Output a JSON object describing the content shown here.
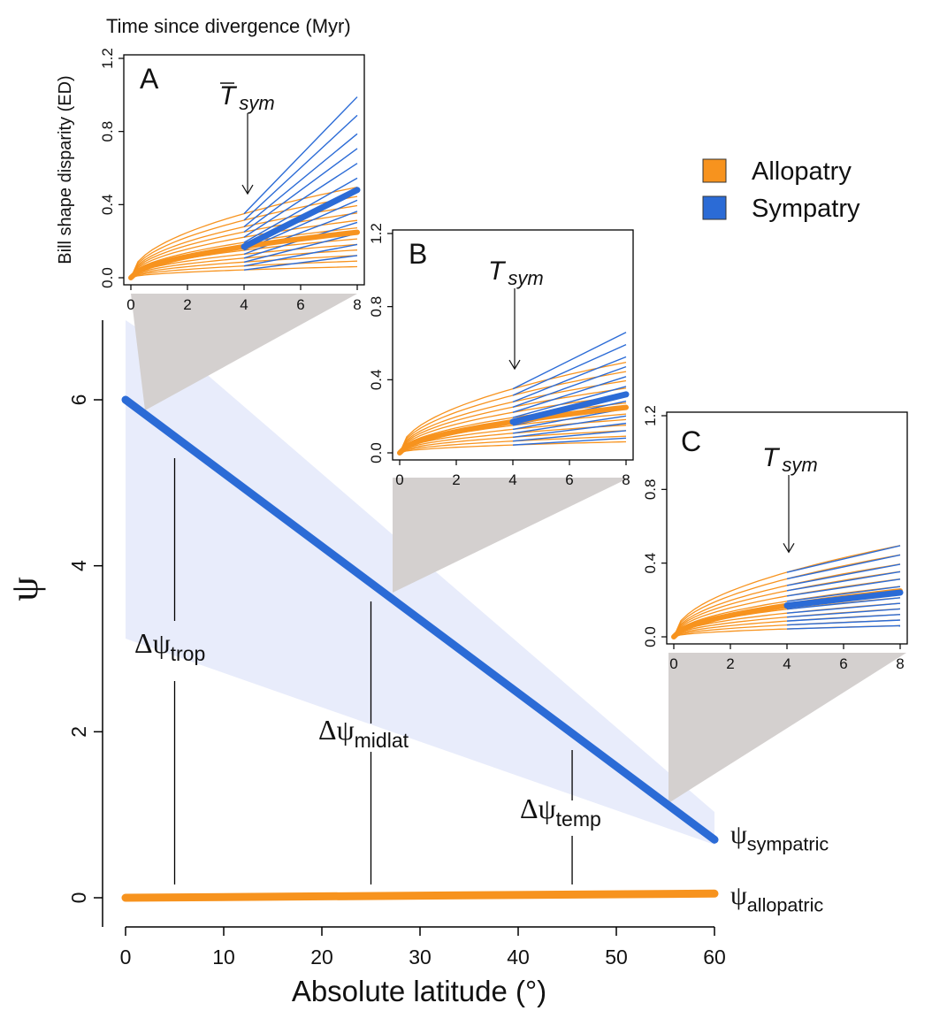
{
  "chart_data": [
    {
      "type": "line",
      "xlabel": "Absolute latitude (°)",
      "ylabel": "ψ",
      "xlim": [
        0,
        60
      ],
      "ylim": [
        0,
        6.8
      ],
      "xticks": [
        0,
        10,
        20,
        30,
        40,
        50,
        60
      ],
      "yticks": [
        0,
        2,
        4,
        6
      ],
      "series": [
        {
          "name": "ψsympatric",
          "label_base": "ψ",
          "label_sub": "sympatric",
          "color": "#2b6bd6",
          "x": [
            0,
            60
          ],
          "y": [
            6.0,
            0.7
          ]
        },
        {
          "name": "ψallopatric",
          "label_base": "ψ",
          "label_sub": "allopatric",
          "color": "#f7931e",
          "x": [
            0,
            60
          ],
          "y": [
            0.0,
            0.05
          ]
        }
      ],
      "annotations": [
        {
          "base": "Δψ",
          "sub": "trop",
          "x": 5
        },
        {
          "base": "Δψ",
          "sub": "midlat",
          "x": 25
        },
        {
          "base": "Δψ",
          "sub": "temp",
          "x": 45.5
        }
      ],
      "legend": {
        "position": "top-right",
        "items": [
          {
            "label": "Allopatry",
            "color": "#f7931e"
          },
          {
            "label": "Sympatry",
            "color": "#2b6bd6"
          }
        ]
      }
    },
    {
      "type": "line",
      "panel": "A",
      "title": "Time since divergence (Myr)",
      "ylabel": "Bill shape disparity (ED)",
      "xlim": [
        0,
        8
      ],
      "ylim": [
        0,
        1.2
      ],
      "xticks": [
        0,
        2,
        4,
        6,
        8
      ],
      "yticks": [
        "0.0",
        "0.4",
        "0.8",
        "1.2"
      ],
      "annotation": "T̄sym",
      "annotation_base": "T",
      "annotation_sub": "sym",
      "overline": true,
      "t_sym": 4,
      "mean_allopatric": {
        "x": [
          0,
          4,
          8
        ],
        "y": [
          0,
          0.17,
          0.23
        ]
      },
      "mean_sympatric": {
        "x": [
          4,
          8
        ],
        "y": [
          0.17,
          0.48
        ]
      }
    },
    {
      "type": "line",
      "panel": "B",
      "ylim": [
        0,
        1.2
      ],
      "xlim": [
        0,
        8
      ],
      "xticks": [
        0,
        2,
        4,
        6,
        8
      ],
      "yticks": [
        "0.0",
        "0.4",
        "0.8",
        "1.2"
      ],
      "annotation_base": "T",
      "annotation_sub": "sym",
      "overline": false,
      "t_sym": 4,
      "mean_allopatric": {
        "x": [
          0,
          4,
          8
        ],
        "y": [
          0,
          0.17,
          0.23
        ]
      },
      "mean_sympatric": {
        "x": [
          4,
          8
        ],
        "y": [
          0.17,
          0.32
        ]
      }
    },
    {
      "type": "line",
      "panel": "C",
      "ylim": [
        0,
        1.2
      ],
      "xlim": [
        0,
        8
      ],
      "xticks": [
        0,
        2,
        4,
        6,
        8
      ],
      "yticks": [
        "0.0",
        "0.4",
        "0.8",
        "1.2"
      ],
      "annotation_base": "T",
      "annotation_sub": "sym",
      "overline": false,
      "t_sym": 4,
      "mean_allopatric": {
        "x": [
          0,
          4,
          8
        ],
        "y": [
          0,
          0.17,
          0.23
        ]
      },
      "mean_sympatric": {
        "x": [
          4,
          8
        ],
        "y": [
          0.17,
          0.24
        ]
      }
    }
  ]
}
